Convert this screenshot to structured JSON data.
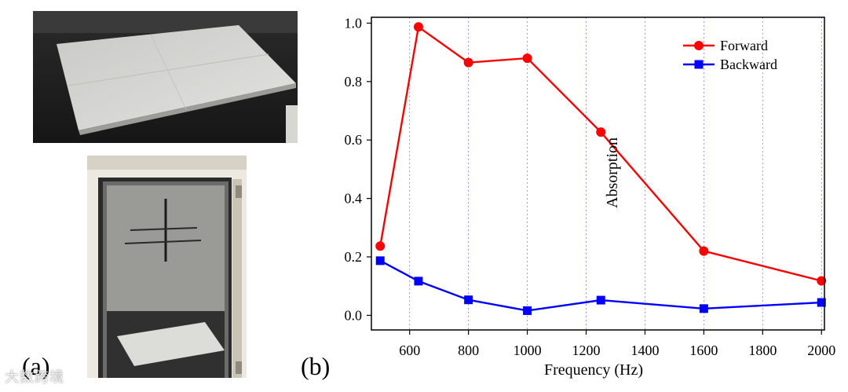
{
  "panels": {
    "a_label": "(a)",
    "b_label": "(b)"
  },
  "watermark_text": "大数跨境",
  "chart_data": {
    "type": "line",
    "x": [
      500,
      630,
      800,
      1000,
      1250,
      1600,
      2000
    ],
    "series": [
      {
        "name": "Forward",
        "color": "#ff0000",
        "marker": "circle",
        "values": [
          0.237,
          0.987,
          0.865,
          0.88,
          0.627,
          0.22,
          0.118
        ]
      },
      {
        "name": "Backward",
        "color": "#0000ff",
        "marker": "square",
        "values": [
          0.187,
          0.117,
          0.053,
          0.016,
          0.052,
          0.023,
          0.044
        ]
      }
    ],
    "xlabel": "Frequency (Hz)",
    "ylabel": "Absorption",
    "xlim": [
      470,
      2010
    ],
    "ylim": [
      -0.05,
      1.02
    ],
    "xticks": [
      600,
      800,
      1000,
      1200,
      1400,
      1600,
      1800,
      2000
    ],
    "yticks": [
      0.0,
      0.2,
      0.4,
      0.6,
      0.8,
      1.0
    ],
    "xtick_labels": [
      "600",
      "800",
      "1000",
      "1200",
      "1400",
      "1600",
      "1800",
      "2000"
    ],
    "ytick_labels": [
      "0.0",
      "0.2",
      "0.4",
      "0.6",
      "0.8",
      "1.0"
    ],
    "grid": "vertical dotted",
    "legend_position": "top-right"
  }
}
